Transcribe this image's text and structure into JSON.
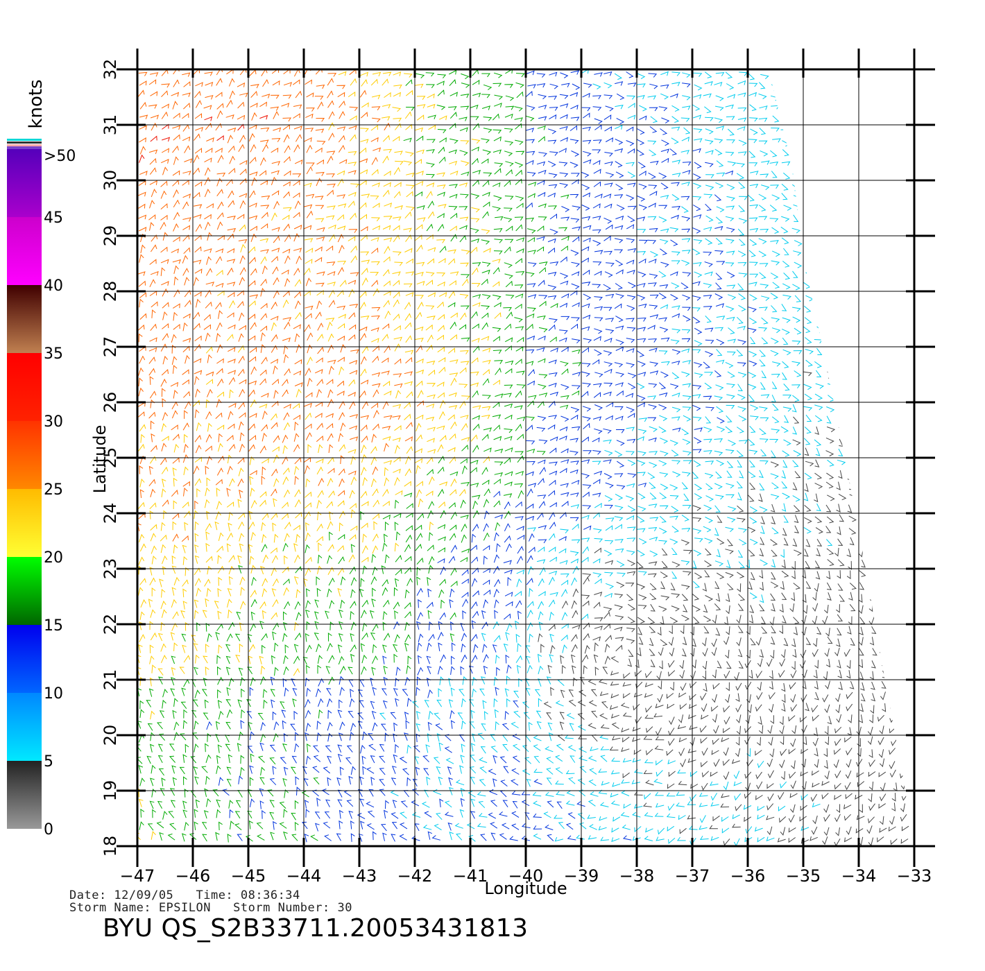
{
  "plot": {
    "xlabel": "Longitude",
    "ylabel": "Latitude",
    "lon_range": [
      -47,
      -33
    ],
    "lat_range": [
      18,
      32
    ],
    "lon_ticks": [
      "−47",
      "−46",
      "−45",
      "−44",
      "−43",
      "−42",
      "−41",
      "−40",
      "−39",
      "−38",
      "−37",
      "−36",
      "−35",
      "−34",
      "−33"
    ],
    "lat_ticks": [
      "18",
      "19",
      "20",
      "21",
      "22",
      "23",
      "24",
      "25",
      "26",
      "27",
      "28",
      "29",
      "30",
      "31",
      "32"
    ],
    "grid": true,
    "content": "scatterometer wind barbs, colored by speed"
  },
  "colorbar": {
    "title": "knots",
    "labels": [
      ">50",
      "45",
      "40",
      "35",
      "30",
      "25",
      "20",
      "15",
      "10",
      "5",
      "0"
    ],
    "bands": [
      {
        "from": 0,
        "to": 5,
        "colors": [
          "#999999",
          "#222222"
        ]
      },
      {
        "from": 5,
        "to": 10,
        "colors": [
          "#00e8ff",
          "#0088ff"
        ]
      },
      {
        "from": 10,
        "to": 15,
        "colors": [
          "#0066ff",
          "#0000ee"
        ]
      },
      {
        "from": 15,
        "to": 20,
        "colors": [
          "#006600",
          "#00ff00"
        ]
      },
      {
        "from": 20,
        "to": 25,
        "colors": [
          "#ffff33",
          "#ffbb00"
        ]
      },
      {
        "from": 25,
        "to": 30,
        "colors": [
          "#ff8800",
          "#ff3300"
        ]
      },
      {
        "from": 30,
        "to": 35,
        "colors": [
          "#ff2200",
          "#ff0000"
        ]
      },
      {
        "from": 35,
        "to": 40,
        "colors": [
          "#c08050",
          "#400000"
        ]
      },
      {
        "from": 40,
        "to": 45,
        "colors": [
          "#ff00ff",
          "#cc00cc"
        ]
      },
      {
        "from": 45,
        "to": 50,
        "colors": [
          "#aa00cc",
          "#5500bb"
        ]
      }
    ]
  },
  "footer": {
    "line1": "Date: 12/09/05   Time: 08:36:34",
    "line2": "Storm Name: EPSILON   Storm Number: 30",
    "title": "BYU QS_S2B33711.20053431813"
  }
}
